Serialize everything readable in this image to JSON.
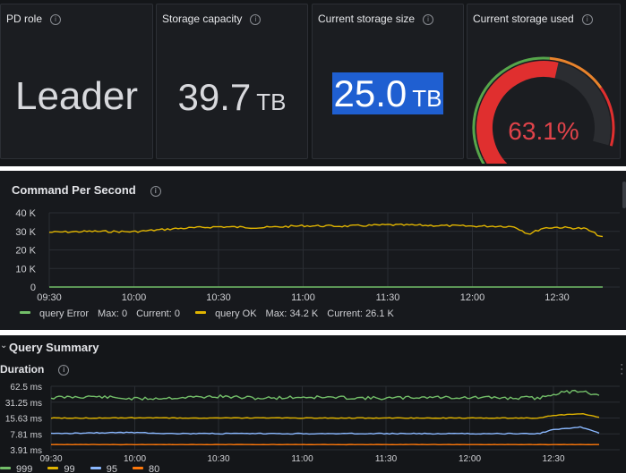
{
  "stats": {
    "pd_role": {
      "title": "PD role",
      "value": "Leader"
    },
    "storage_capacity": {
      "title": "Storage capacity",
      "value": "39.7",
      "unit": "TB"
    },
    "current_storage_size": {
      "title": "Current storage size",
      "value": "25.0",
      "unit": "TB"
    },
    "current_storage_used": {
      "title": "Current storage used",
      "value": "63.1%",
      "percent": 63.1,
      "colors": {
        "track": "#2b2d31",
        "value": "#e02f2f",
        "threshold_green": "#56a64b",
        "threshold_orange": "#e8832c",
        "threshold_red": "#e02f2f"
      }
    }
  },
  "command_panel": {
    "title": "Command Per Second",
    "legend": [
      {
        "name": "query Error",
        "color": "#73bf69",
        "max_label": "Max:",
        "max": "0",
        "current_label": "Current:",
        "current": "0"
      },
      {
        "name": "query OK",
        "color": "#e0b400",
        "max_label": "Max:",
        "max": "34.2 K",
        "current_label": "Current:",
        "current": "26.1 K"
      }
    ]
  },
  "query_summary": {
    "section_title": "Query Summary",
    "panel_title": "Duration",
    "legend": [
      {
        "name": "999",
        "color": "#73bf69"
      },
      {
        "name": "99",
        "color": "#e0b400"
      },
      {
        "name": "95",
        "color": "#8ab8ff"
      },
      {
        "name": "80",
        "color": "#ff780a"
      }
    ]
  },
  "chart_data": [
    {
      "type": "line",
      "title": "Command Per Second",
      "x_ticks": [
        "09:30",
        "10:00",
        "10:30",
        "11:00",
        "11:30",
        "12:00",
        "12:30"
      ],
      "x": [
        "09:30",
        "09:45",
        "10:00",
        "10:15",
        "10:30",
        "10:45",
        "11:00",
        "11:15",
        "11:30",
        "11:45",
        "12:00",
        "12:10",
        "12:15",
        "12:20",
        "12:25",
        "12:30",
        "12:40",
        "12:47"
      ],
      "y_ticks": [
        "0",
        "10 K",
        "20 K",
        "30 K",
        "40 K"
      ],
      "ylim": [
        0,
        40000
      ],
      "series": [
        {
          "name": "query Error",
          "color": "#73bf69",
          "values": [
            0,
            0,
            0,
            0,
            0,
            0,
            0,
            0,
            0,
            0,
            0,
            0,
            0,
            0,
            0,
            0,
            0,
            0
          ]
        },
        {
          "name": "query OK",
          "color": "#e0b400",
          "values": [
            29500,
            30000,
            29800,
            31500,
            32500,
            32000,
            33000,
            32800,
            33500,
            33200,
            32800,
            32800,
            32500,
            28500,
            31800,
            32200,
            31500,
            26100
          ]
        }
      ]
    },
    {
      "type": "line",
      "title": "Duration",
      "x_ticks": [
        "09:30",
        "10:00",
        "10:30",
        "11:00",
        "11:30",
        "12:00",
        "12:30"
      ],
      "x": [
        "09:30",
        "09:45",
        "10:00",
        "10:15",
        "10:30",
        "10:45",
        "11:00",
        "11:15",
        "11:30",
        "11:45",
        "12:00",
        "12:10",
        "12:15",
        "12:20",
        "12:25",
        "12:30",
        "12:40",
        "12:47"
      ],
      "y_ticks": [
        "3.91 ms",
        "7.81 ms",
        "15.63 ms",
        "31.25 ms",
        "62.5 ms"
      ],
      "y_scale": "log2",
      "ylim_ms": [
        3.91,
        62.5
      ],
      "series": [
        {
          "name": "999",
          "color": "#73bf69",
          "values_ms": [
            38,
            40,
            36,
            38,
            40,
            37,
            39,
            38,
            37,
            39,
            38,
            38,
            37,
            38,
            37,
            45,
            52,
            40
          ]
        },
        {
          "name": "99",
          "color": "#e0b400",
          "values_ms": [
            15.6,
            15.6,
            15.8,
            15.6,
            15.6,
            15.7,
            15.6,
            15.6,
            15.6,
            15.6,
            15.6,
            15.6,
            15.6,
            15.6,
            15.6,
            17.5,
            19,
            15.6
          ]
        },
        {
          "name": "95",
          "color": "#8ab8ff",
          "values_ms": [
            7.9,
            8.2,
            8.3,
            7.9,
            7.9,
            7.9,
            7.9,
            7.9,
            7.9,
            7.9,
            7.9,
            7.9,
            7.9,
            7.9,
            7.9,
            9.5,
            10.5,
            7.9
          ]
        },
        {
          "name": "80",
          "color": "#ff780a",
          "values_ms": [
            4.9,
            4.9,
            4.9,
            4.9,
            4.9,
            4.9,
            4.9,
            4.9,
            4.9,
            4.9,
            4.9,
            4.9,
            4.9,
            4.9,
            4.9,
            4.9,
            4.9,
            4.9
          ]
        }
      ]
    }
  ]
}
